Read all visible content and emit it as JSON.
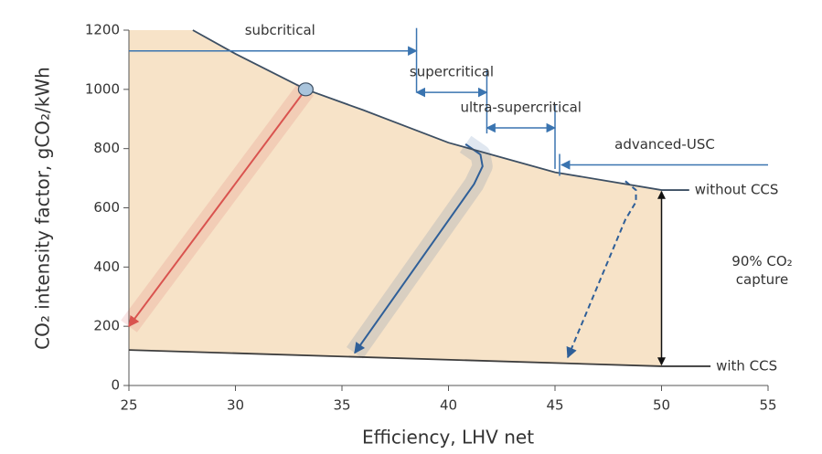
{
  "chart_data": {
    "type": "line",
    "xlabel": "Efficiency,  LHV net",
    "ylabel": "CO₂ intensity factor, gCO₂/kWh",
    "xlim": [
      25,
      55
    ],
    "ylim": [
      0,
      1200
    ],
    "xticks": [
      25,
      30,
      35,
      40,
      45,
      50,
      55
    ],
    "yticks": [
      0,
      200,
      400,
      600,
      800,
      1000,
      1200
    ],
    "fill_color": "#f7e3c8",
    "series": [
      {
        "name": "without CCS",
        "color": "#3d4f63",
        "x": [
          28,
          30,
          33.3,
          36,
          40,
          45,
          50,
          51.3
        ],
        "values": [
          1200,
          1120,
          1000,
          930,
          820,
          720,
          660,
          660
        ]
      },
      {
        "name": "with CCS",
        "color": "#3d3d3d",
        "x": [
          25,
          50,
          52.3
        ],
        "values": [
          120,
          65,
          65
        ]
      }
    ],
    "marker": {
      "x": 33.3,
      "value": 1000,
      "color": "#a9c4dc"
    },
    "regimes": [
      {
        "label": "subcritical",
        "x": [
          25,
          38.5
        ],
        "value": 1130,
        "heads": "end"
      },
      {
        "label": "supercritical",
        "x": [
          38.5,
          41.8
        ],
        "value": 990,
        "heads": "both"
      },
      {
        "label": "ultra-supercritical",
        "x": [
          41.8,
          45
        ],
        "value": 870,
        "heads": "both"
      },
      {
        "label": "advanced-USC",
        "x": [
          55,
          45.3
        ],
        "value": 745,
        "heads": "end"
      }
    ],
    "regime_color": "#3a74b0",
    "pathways": [
      {
        "color": "#d9534f",
        "dashed": false,
        "x": [
          33.3,
          25
        ],
        "values": [
          1000,
          200
        ]
      },
      {
        "color": "#2f5f98",
        "dashed": false,
        "x": [
          40.8,
          41.5,
          41.6,
          41.2,
          35.6
        ],
        "values": [
          815,
          780,
          740,
          680,
          110
        ]
      },
      {
        "color": "#2f5f98",
        "dashed": true,
        "x": [
          48.3,
          48.8,
          48.8,
          48.3,
          45.6
        ],
        "values": [
          690,
          660,
          620,
          560,
          95
        ]
      }
    ],
    "capture": {
      "label": [
        "90% CO₂",
        "capture"
      ],
      "x": 50,
      "values": [
        655,
        70
      ]
    }
  }
}
